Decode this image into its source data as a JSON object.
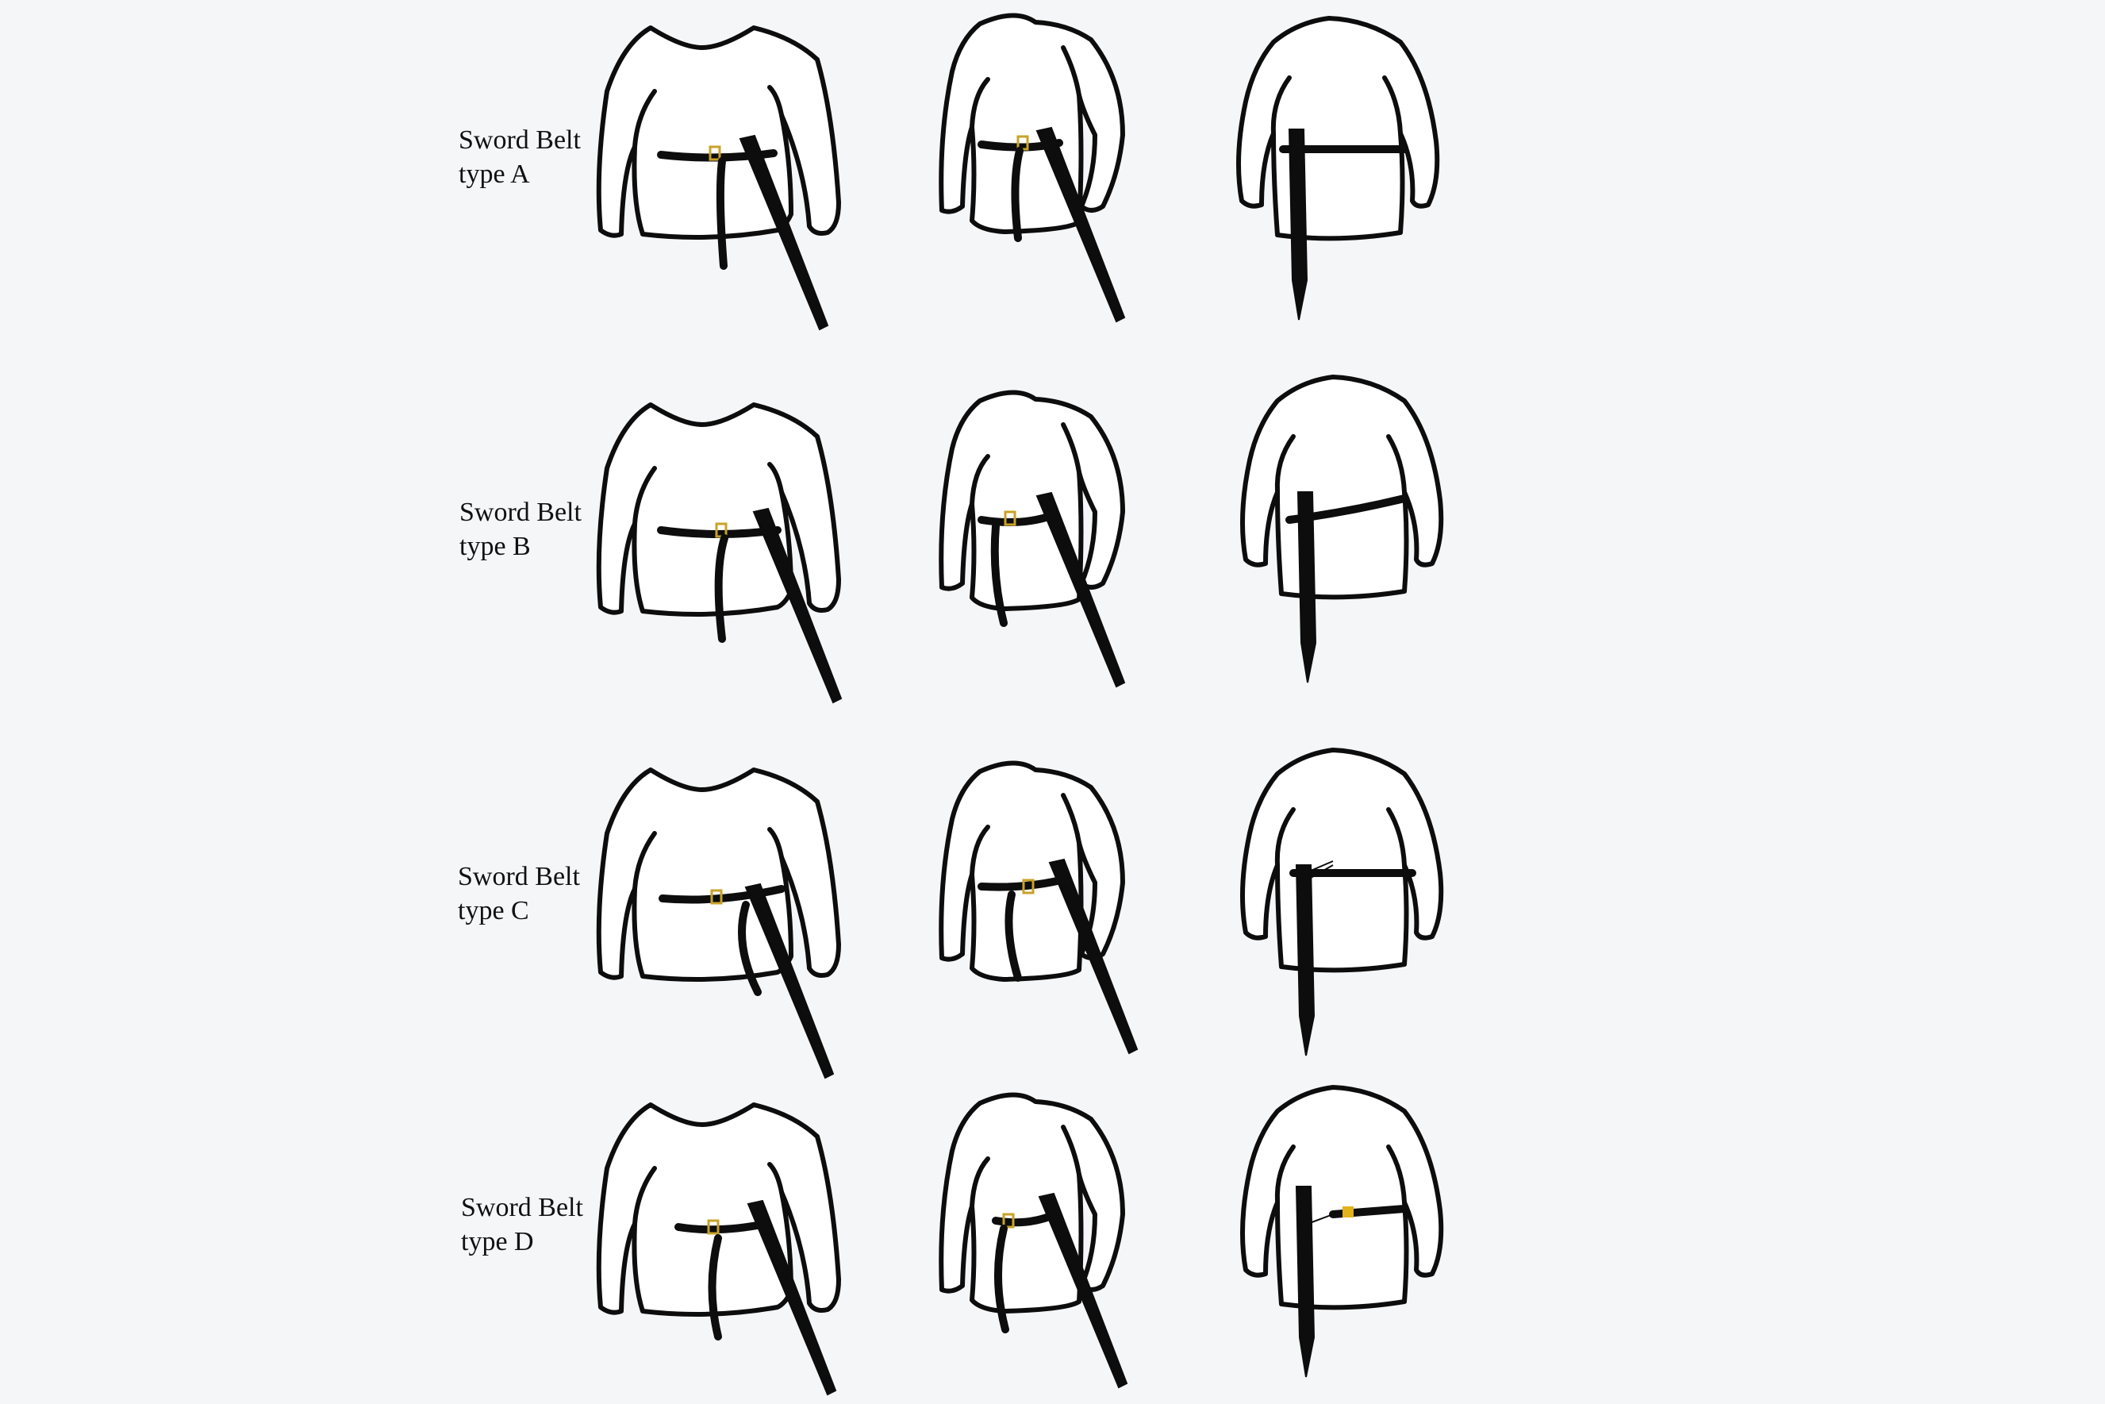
{
  "labels": {
    "a": {
      "line1": "Sword Belt",
      "line2": "type A"
    },
    "b": {
      "line1": "Sword Belt",
      "line2": "type B"
    },
    "c": {
      "line1": "Sword Belt",
      "line2": "type C"
    },
    "d": {
      "line1": "Sword Belt",
      "line2": "type D"
    }
  },
  "colors": {
    "background": "#f4f6f8",
    "outline": "#0d0d0d",
    "shirt_fill": "#ffffff",
    "buckle": "#c9a227",
    "type_d_clasp": "#e0b21c"
  },
  "views": [
    "front",
    "three-quarter",
    "back"
  ],
  "rows": [
    "a",
    "b",
    "c",
    "d"
  ]
}
